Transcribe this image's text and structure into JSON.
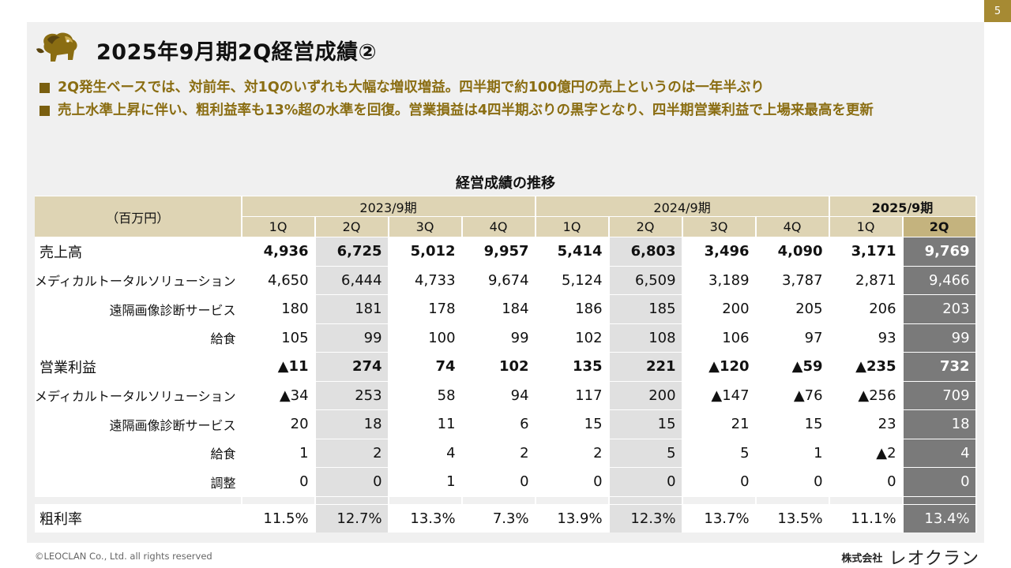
{
  "page_number": "5",
  "title": "2025年9月期2Q経営成績②",
  "bullets": [
    "2Q発生ベースでは、対前年、対1Qのいずれも大幅な増収増益。四半期で約100億円の売上というのは一年半ぶり",
    "売上水準上昇に伴い、粗利益率も13%超の水準を回復。営業損益は4四半期ぶりの黒字となり、四半期営業利益で上場来最高を更新"
  ],
  "table": {
    "title": "経営成績の推移",
    "unit_label": "（百万円）",
    "periods": [
      "2023/9期",
      "2024/9期",
      "2025/9期"
    ],
    "quarters": [
      "1Q",
      "2Q",
      "3Q",
      "4Q",
      "1Q",
      "2Q",
      "3Q",
      "4Q",
      "1Q",
      "2Q"
    ],
    "rows": [
      {
        "label": "売上高",
        "values": [
          "4,936",
          "6,725",
          "5,012",
          "9,957",
          "5,414",
          "6,803",
          "3,496",
          "4,090",
          "3,171",
          "9,769"
        ]
      },
      {
        "label": "メディカルトータルソリューション",
        "values": [
          "4,650",
          "6,444",
          "4,733",
          "9,674",
          "5,124",
          "6,509",
          "3,189",
          "3,787",
          "2,871",
          "9,466"
        ]
      },
      {
        "label": "遠隔画像診断サービス",
        "values": [
          "180",
          "181",
          "178",
          "184",
          "186",
          "185",
          "200",
          "205",
          "206",
          "203"
        ]
      },
      {
        "label": "給食",
        "values": [
          "105",
          "99",
          "100",
          "99",
          "102",
          "108",
          "106",
          "97",
          "93",
          "99"
        ]
      },
      {
        "label": "営業利益",
        "values": [
          "▲11",
          "274",
          "74",
          "102",
          "135",
          "221",
          "▲120",
          "▲59",
          "▲235",
          "732"
        ]
      },
      {
        "label": "メディカルトータルソリューション",
        "values": [
          "▲34",
          "253",
          "58",
          "94",
          "117",
          "200",
          "▲147",
          "▲76",
          "▲256",
          "709"
        ]
      },
      {
        "label": "遠隔画像診断サービス",
        "values": [
          "20",
          "18",
          "11",
          "6",
          "15",
          "15",
          "21",
          "15",
          "23",
          "18"
        ]
      },
      {
        "label": "給食",
        "values": [
          "1",
          "2",
          "4",
          "2",
          "2",
          "5",
          "5",
          "1",
          "▲2",
          "4"
        ]
      },
      {
        "label": "調整",
        "values": [
          "0",
          "0",
          "1",
          "0",
          "0",
          "0",
          "0",
          "0",
          "0",
          "0"
        ]
      },
      {
        "label": "粗利率",
        "values": [
          "11.5%",
          "12.7%",
          "13.3%",
          "7.3%",
          "13.9%",
          "12.3%",
          "13.7%",
          "13.5%",
          "11.1%",
          "13.4%"
        ]
      }
    ]
  },
  "footer": {
    "copyright": "©LEOCLAN Co., Ltd. all rights reserved",
    "company_prefix": "株式会社",
    "company_name": "レオクラン"
  },
  "colors": {
    "accent_gold": "#a68a33",
    "bullet_text": "#8a6d12",
    "header_beige": "#ded4b4",
    "latest_column": "#7a7a7a",
    "highlight_column": "#e0e0e0",
    "panel_bg": "#f0f0f0"
  },
  "icons": [
    "lion-logo-icon",
    "bullet-square-icon"
  ]
}
